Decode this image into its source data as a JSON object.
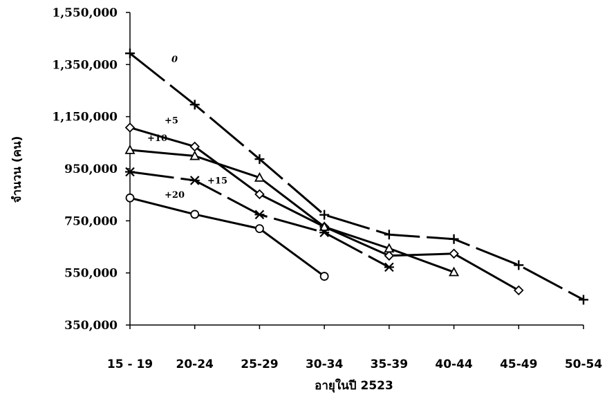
{
  "chart_data": {
    "type": "line",
    "title": "",
    "xlabel": "อายุในปี 2523",
    "ylabel": "จำนวน (คน)",
    "categories": [
      "15 - 19",
      "20-24",
      "25-29",
      "30-34",
      "35-39",
      "40-44",
      "45-49",
      "50-54"
    ],
    "ylim": [
      350000,
      1550000
    ],
    "yticks": [
      350000,
      550000,
      750000,
      950000,
      1150000,
      1350000,
      1550000
    ],
    "ytick_labels": [
      "350,000",
      "550,000",
      "750,000",
      "950,000",
      "1,150,000",
      "1,350,000",
      "1,550,000"
    ],
    "grid": false,
    "series": [
      {
        "name": "0",
        "marker": "plus",
        "dashed": true,
        "values": [
          1393000,
          1196000,
          987000,
          773000,
          697000,
          680000,
          580000,
          447000
        ]
      },
      {
        "name": "+5",
        "marker": "diamond",
        "dashed": false,
        "values": [
          1108000,
          1035000,
          852000,
          727000,
          616000,
          624000,
          483000,
          null
        ]
      },
      {
        "name": "+10",
        "marker": "triangle",
        "dashed": false,
        "values": [
          1022000,
          999000,
          916000,
          727000,
          644000,
          553000,
          null,
          null
        ]
      },
      {
        "name": "+15",
        "marker": "star",
        "dashed": true,
        "values": [
          938000,
          905000,
          774000,
          705000,
          572000,
          null,
          null,
          null
        ]
      },
      {
        "name": "+20",
        "marker": "circle",
        "dashed": false,
        "values": [
          838000,
          775000,
          720000,
          537000,
          null,
          null,
          null,
          null
        ]
      }
    ]
  }
}
